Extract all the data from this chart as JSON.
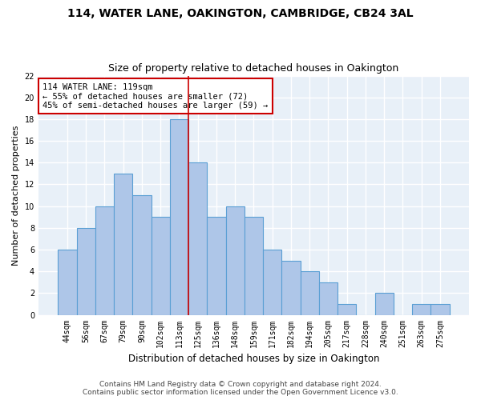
{
  "title": "114, WATER LANE, OAKINGTON, CAMBRIDGE, CB24 3AL",
  "subtitle": "Size of property relative to detached houses in Oakington",
  "xlabel": "Distribution of detached houses by size in Oakington",
  "ylabel": "Number of detached properties",
  "categories": [
    "44sqm",
    "56sqm",
    "67sqm",
    "79sqm",
    "90sqm",
    "102sqm",
    "113sqm",
    "125sqm",
    "136sqm",
    "148sqm",
    "159sqm",
    "171sqm",
    "182sqm",
    "194sqm",
    "205sqm",
    "217sqm",
    "228sqm",
    "240sqm",
    "251sqm",
    "263sqm",
    "275sqm"
  ],
  "values": [
    6,
    8,
    10,
    13,
    11,
    9,
    18,
    14,
    9,
    10,
    9,
    6,
    5,
    4,
    3,
    1,
    0,
    2,
    0,
    1,
    1
  ],
  "bar_color": "#aec6e8",
  "bar_edgecolor": "#5a9fd4",
  "fig_facecolor": "#ffffff",
  "ax_facecolor": "#e8f0f8",
  "grid_color": "#ffffff",
  "vline_x": 6.5,
  "vline_color": "#cc0000",
  "annotation_line1": "114 WATER LANE: 119sqm",
  "annotation_line2": "← 55% of detached houses are smaller (72)",
  "annotation_line3": "45% of semi-detached houses are larger (59) →",
  "annotation_box_facecolor": "#ffffff",
  "annotation_box_edgecolor": "#cc0000",
  "ylim": [
    0,
    22
  ],
  "yticks": [
    0,
    2,
    4,
    6,
    8,
    10,
    12,
    14,
    16,
    18,
    20,
    22
  ],
  "footer1": "Contains HM Land Registry data © Crown copyright and database right 2024.",
  "footer2": "Contains public sector information licensed under the Open Government Licence v3.0.",
  "title_fontsize": 10,
  "subtitle_fontsize": 9,
  "ylabel_fontsize": 8,
  "xlabel_fontsize": 8.5,
  "tick_fontsize": 7,
  "annotation_fontsize": 7.5,
  "footer_fontsize": 6.5
}
